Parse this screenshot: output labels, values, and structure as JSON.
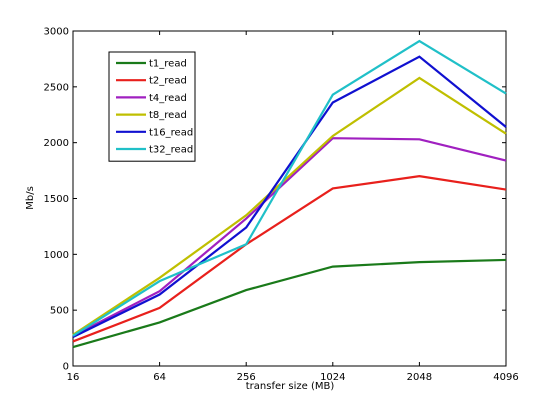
{
  "chart_data": {
    "type": "line",
    "title": "",
    "xlabel": "transfer size (MB)",
    "ylabel": "Mb/s",
    "categories": [
      "16",
      "64",
      "256",
      "1024",
      "2048",
      "4096"
    ],
    "ylim": [
      0,
      3000
    ],
    "yticks": [
      0,
      500,
      1000,
      1500,
      2000,
      2500,
      3000
    ],
    "grid": false,
    "legend_position": "top-left",
    "series": [
      {
        "name": "t1_read",
        "color": "#1a7a1a",
        "values": [
          170,
          390,
          680,
          890,
          930,
          950
        ]
      },
      {
        "name": "t2_read",
        "color": "#e8201c",
        "values": [
          220,
          520,
          1090,
          1590,
          1700,
          1580
        ]
      },
      {
        "name": "t4_read",
        "color": "#a020c0",
        "values": [
          270,
          670,
          1320,
          2040,
          2030,
          1840
        ]
      },
      {
        "name": "t8_read",
        "color": "#bfbf00",
        "values": [
          280,
          790,
          1350,
          2060,
          2580,
          2080
        ]
      },
      {
        "name": "t16_read",
        "color": "#1010d0",
        "values": [
          260,
          640,
          1240,
          2360,
          2770,
          2140
        ]
      },
      {
        "name": "t32_read",
        "color": "#20c0c8",
        "values": [
          270,
          760,
          1090,
          2430,
          2910,
          2440
        ]
      }
    ]
  }
}
